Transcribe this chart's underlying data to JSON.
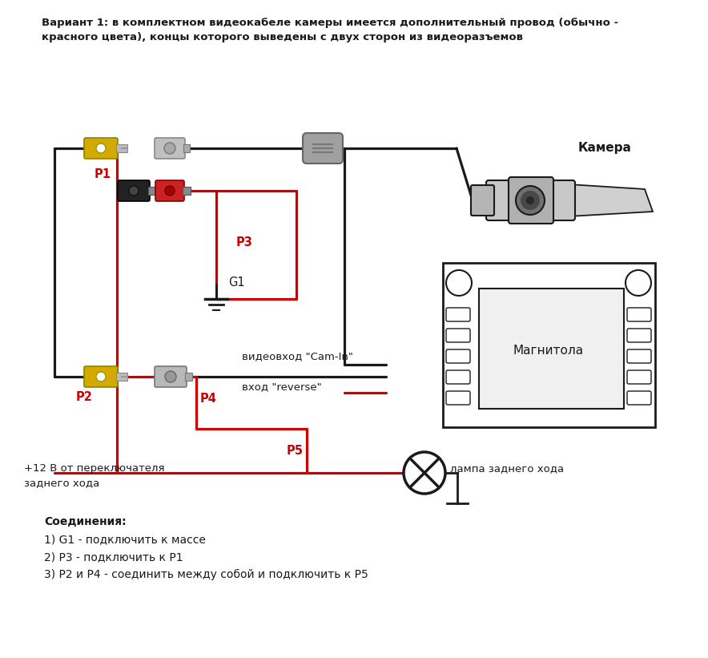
{
  "bg_color": "#ffffff",
  "title_line1": "Вариант 1: в комплектном видеокабеле камеры имеется дополнительный провод (обычно -",
  "title_line2": "красного цвета), концы которого выведены с двух сторон из видеоразъемов",
  "label_camera": "Камера",
  "label_magnit": "Магнитола",
  "label_lamp": "лампа заднего хода",
  "label_cam_in": "видеовход \"Cam-In\"",
  "label_reverse": "вход \"reverse\"",
  "label_p1": "P1",
  "label_p2": "P2",
  "label_p3": "P3",
  "label_p4": "P4",
  "label_p5": "P5",
  "label_g1": "G1",
  "label_plus12_1": "+12 В от переключателя",
  "label_plus12_2": "заднего хода",
  "connections_title": "Соединения:",
  "conn1": "1) G1 - подключить к массе",
  "conn2": "2) P3 - подключить к P1",
  "conn3": "3) P2 и P4 - соединить между собой и подключить к P5",
  "color_red": "#cc0000",
  "color_black": "#1a1a1a",
  "color_yellow": "#d4aa00",
  "color_gray": "#999999",
  "color_lightgray": "#cccccc",
  "color_darkgray": "#555555",
  "color_white": "#ffffff"
}
